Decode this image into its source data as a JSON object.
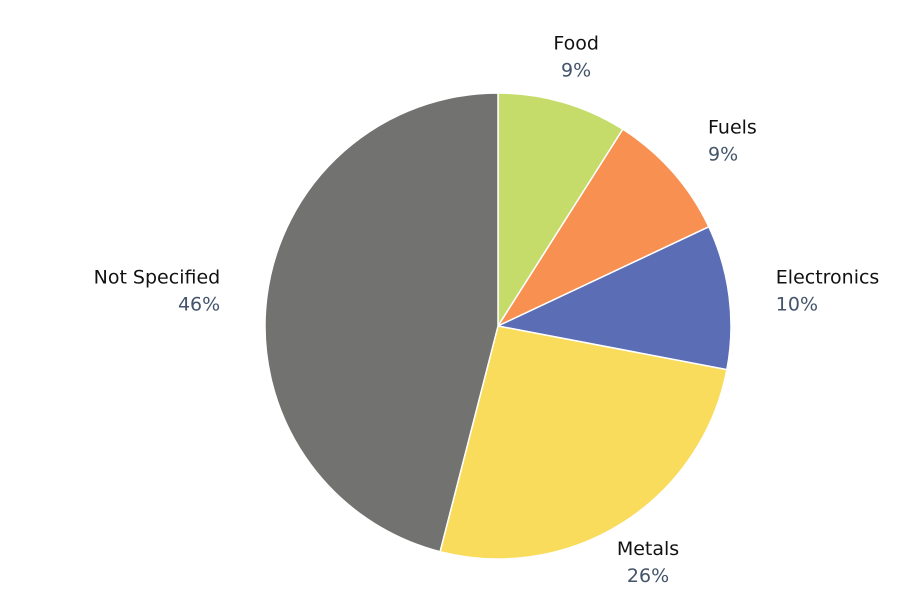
{
  "chart_data": {
    "type": "pie",
    "categories": [
      "Food",
      "Fuels",
      "Electronics",
      "Metals",
      "Not Specified"
    ],
    "values": [
      9,
      9,
      10,
      26,
      46
    ],
    "value_labels": [
      "9%",
      "9%",
      "10%",
      "26%",
      "46%"
    ],
    "colors": [
      "#c5dc6a",
      "#f79050",
      "#5b6db5",
      "#f9dc5c",
      "#727270"
    ]
  }
}
